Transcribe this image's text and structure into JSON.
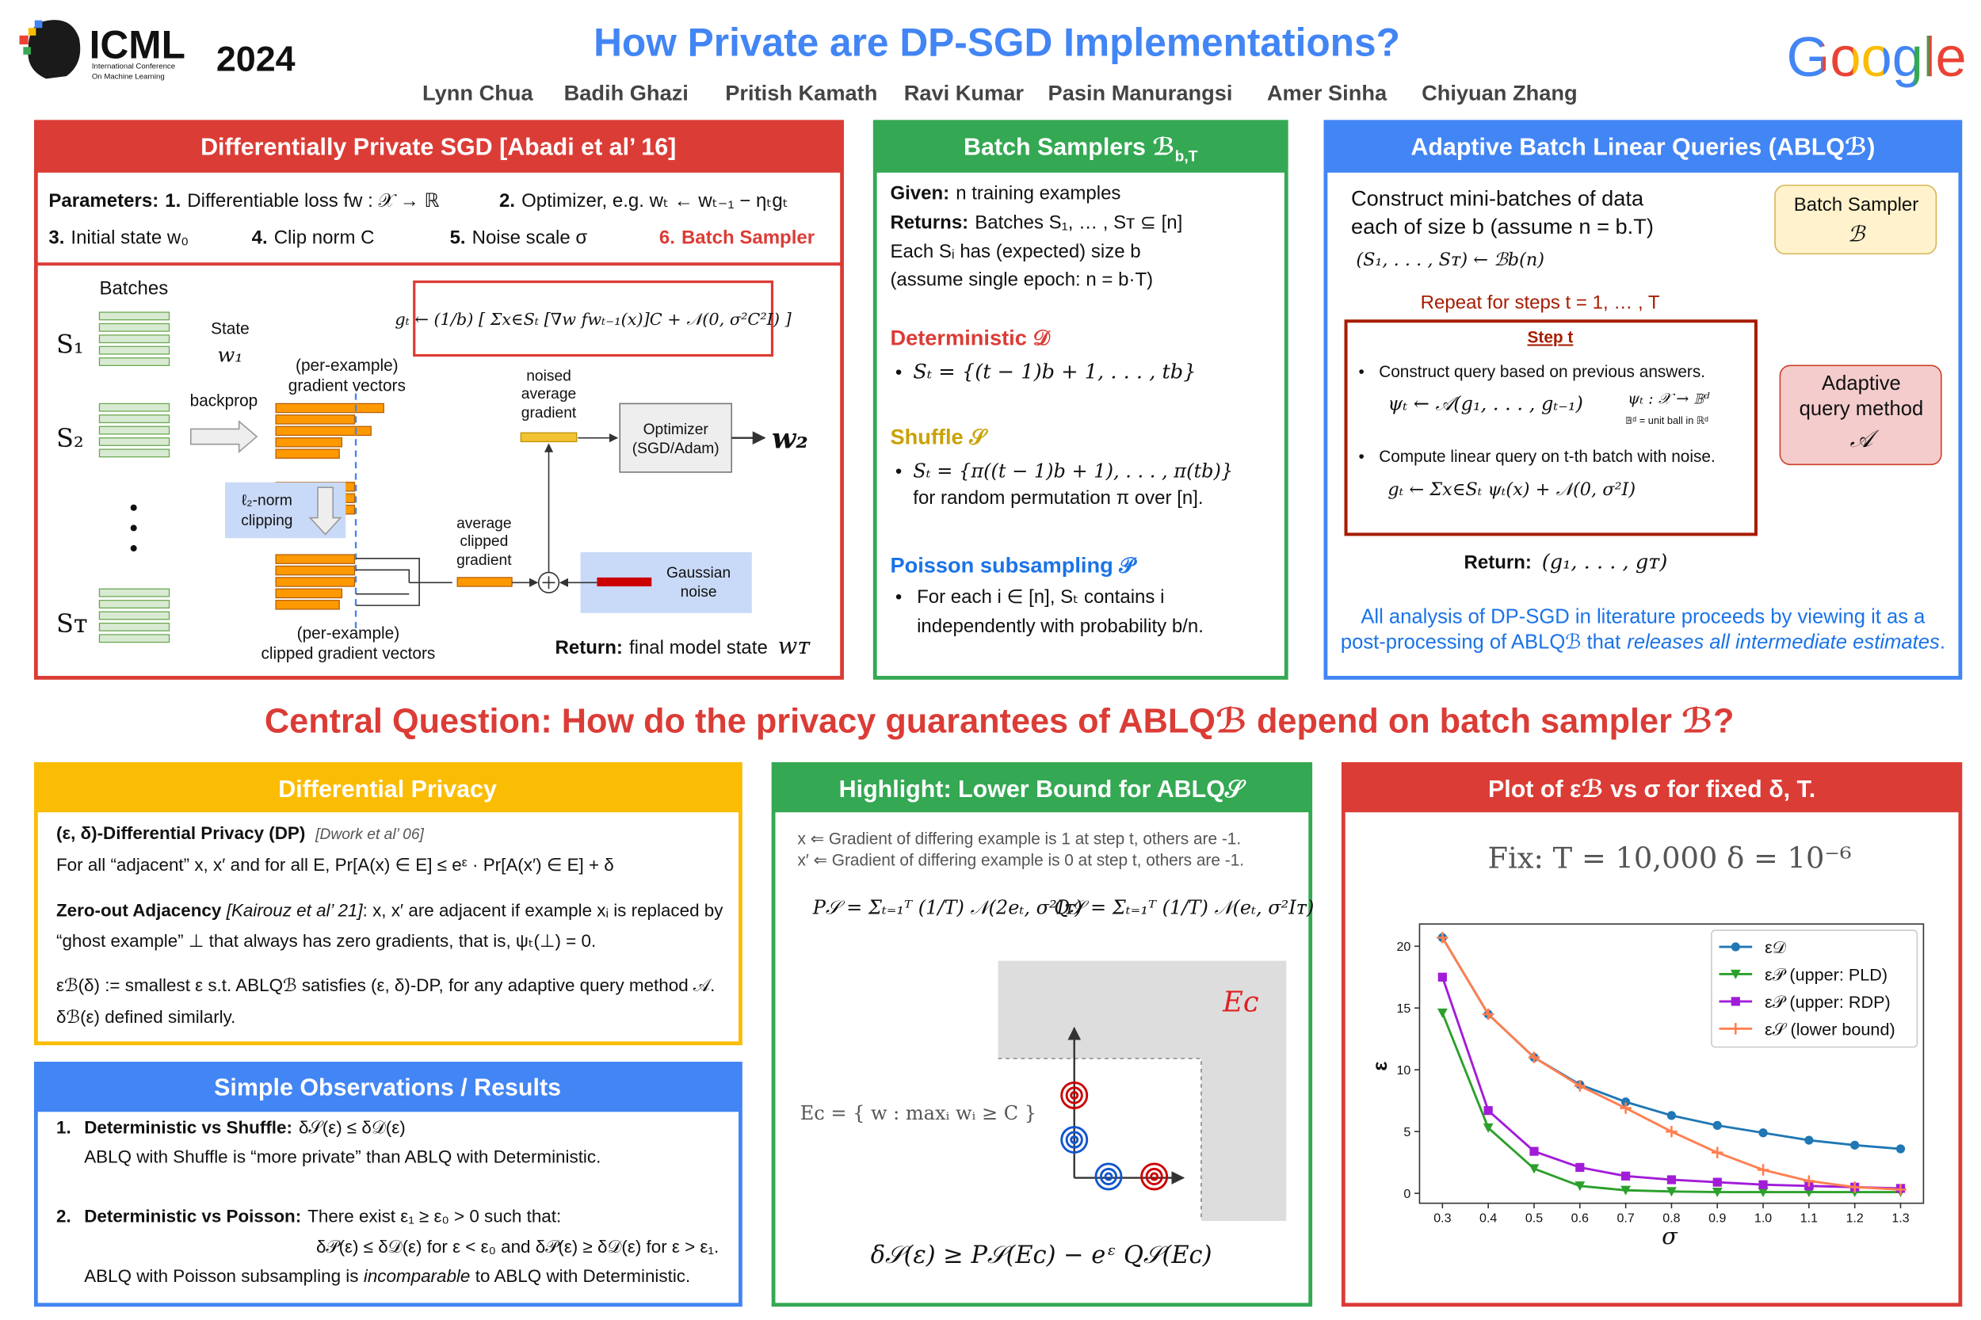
{
  "header": {
    "logo": "ICML",
    "logo_line1": "International Conference",
    "logo_line2": "On Machine Learning",
    "year": "2024",
    "title": "How Private are DP-SGD Implementations?",
    "authors": [
      "Lynn Chua",
      "Badih Ghazi",
      "Pritish Kamath",
      "Ravi Kumar",
      "Pasin Manurangsi",
      "Amer Sinha",
      "Chiyuan Zhang"
    ],
    "brand": "Google"
  },
  "dpsgd": {
    "title": "Differentially Private SGD [Abadi et al’ 16]",
    "params_label": "Parameters:",
    "params": [
      {
        "num": "1.",
        "text": "Differentiable loss fw : 𝒳 → ℝ"
      },
      {
        "num": "2.",
        "text": "Optimizer, e.g. wₜ ← wₜ₋₁ − ηₜgₜ"
      },
      {
        "num": "3.",
        "text": "Initial state w₀"
      },
      {
        "num": "4.",
        "text": "Clip norm C"
      },
      {
        "num": "5.",
        "text": "Noise scale σ"
      },
      {
        "num": "6.",
        "text": "Batch Sampler"
      }
    ],
    "formula": "gₜ ← (1/b) [ Σx∈Sₜ [∇w fwₜ₋₁(x)]C + 𝒩(0, σ²C²I) ]",
    "batches_label": "Batches",
    "sets": [
      "S₁",
      "S₂",
      "Sᴛ"
    ],
    "state_label": "State",
    "state": "w₁",
    "backprop": "backprop",
    "grad_label": [
      "(per-example)",
      "gradient vectors"
    ],
    "clip_label": [
      "ℓ₂-norm",
      "clipping"
    ],
    "noised_label": [
      "noised",
      "average",
      "gradient"
    ],
    "optimizer": [
      "Optimizer",
      "(SGD/Adam)"
    ],
    "next_state": "w₂",
    "avg_label": [
      "average",
      "clipped",
      "gradient"
    ],
    "noise_label": [
      "Gaussian",
      "noise"
    ],
    "clipped_label": [
      "(per-example)",
      "clipped gradient vectors"
    ],
    "return_label": "Return:",
    "return_text": "final model state",
    "final_state": "wᴛ"
  },
  "samplers": {
    "title": "Batch Samplers ℬ",
    "title_sub": "b,T",
    "given_label": "Given:",
    "given": "n training examples",
    "returns_label": "Returns:",
    "returns": "Batches S₁, … , Sᴛ ⊆ [n]",
    "size_note": "Each Sᵢ has (expected) size b",
    "epoch_note": "(assume single epoch: n = b·T)",
    "det_title": "Deterministic 𝒟",
    "det_def": "Sₜ = {(t − 1)b + 1, . . . , tb}",
    "shuf_title": "Shuffle 𝒮",
    "shuf_def": "Sₜ = {π((t − 1)b + 1), . . . , π(tb)}",
    "shuf_note": "for random permutation π over [n].",
    "pois_title": "Poisson subsampling 𝒫",
    "pois_def": [
      "For each i ∈ [n], Sₜ contains i",
      "independently with probability b/n."
    ]
  },
  "ablq": {
    "title": "Adaptive Batch Linear Queries (ABLQℬ)",
    "intro": [
      "Construct mini-batches of data",
      "each of size b (assume n = b.T)"
    ],
    "sampling": "(S₁, . . . , Sᴛ) ← ℬb(n)",
    "sampler_box": [
      "Batch Sampler",
      "ℬ"
    ],
    "repeat": "Repeat for steps t = 1, … , T",
    "step_title": "Step t",
    "query_step": "Construct query based on previous answers.",
    "query_formula": "ψₜ ← 𝒜(g₁, . . . , gₜ₋₁)",
    "query_range": "ψₜ : 𝒳 → 𝔹ᵈ",
    "ball_note": "𝔹ᵈ = unit ball in ℝᵈ",
    "answer_step": "Compute linear query on t-th batch with noise.",
    "answer_formula": "gₜ ← Σx∈Sₜ ψₜ(x) + 𝒩(0, σ²I)",
    "method_box": [
      "Adaptive",
      "query method",
      "𝒜"
    ],
    "return_label": "Return:",
    "return_value": "(g₁, . . . , gᴛ)",
    "note_line1": "All analysis of DP-SGD in literature proceeds by viewing it as a",
    "note_line2": [
      "post-processing of ABLQℬ that",
      "releases all intermediate estimates",
      "."
    ]
  },
  "question": "Central Question: How do the privacy guarantees of ABLQℬ depend on batch sampler ℬ?",
  "dp": {
    "title": "Differential Privacy",
    "def_title": "(ε, δ)-Differential Privacy (DP)",
    "def_cite": "[Dwork et al’ 06]",
    "def_text": "For all “adjacent” x, x′ and for all E,   Pr[A(x) ∈ E]  ≤  eᵋ · Pr[A(x′) ∈ E] + δ",
    "adj_title": "Zero-out Adjacency",
    "adj_cite": "[Kairouz et al’ 21]",
    "adj_text": [
      ": x, x′ are adjacent if example xᵢ is replaced by",
      "“ghost example” ⊥ that always has zero gradients, that is, ψₜ(⊥) = 0."
    ],
    "eps_def": "εℬ(δ) := smallest ε s.t. ABLQℬ satisfies (ε, δ)-DP, for any adaptive query method 𝒜.",
    "delta_def": "δℬ(ε) defined similarly."
  },
  "results": {
    "title": "Simple Observations / Results",
    "items": [
      {
        "num": "1.",
        "title": "Deterministic vs Shuffle:",
        "claim": "δ𝒮(ε) ≤ δ𝒟(ε)",
        "note": "ABLQ with Shuffle is “more private” than ABLQ with Deterministic."
      },
      {
        "num": "2.",
        "title": "Deterministic vs Poisson:",
        "claim": "There exist ε₁ ≥ ε₀ > 0 such that:",
        "condition": "δ𝒫(ε) ≤ δ𝒟(ε) for ε < ε₀ and δ𝒫(ε) ≥ δ𝒟(ε) for ε > ε₁.",
        "note": [
          "ABLQ with Poisson subsampling is",
          "incomparable",
          "to ABLQ with Deterministic."
        ]
      }
    ]
  },
  "highlight": {
    "title": "Highlight: Lower Bound for ABLQ𝒮",
    "x_def": "x ⇐ Gradient of differing example is 1 at step t, others are -1.",
    "x2_def": "x′ ⇐ Gradient of differing example is 0 at step t, others are -1.",
    "p_formula": "P𝒮 = Σₜ₌₁ᵀ (1/T) 𝒩(2eₜ, σ²Iᴛ)",
    "q_formula": "Q𝒮 = Σₜ₌₁ᵀ (1/T) 𝒩(eₜ, σ²Iᴛ)",
    "event_label": "Eᴄ",
    "event_def": "Eᴄ = { w : maxᵢ wᵢ ≥ C }",
    "bound": "δ𝒮(ε) ≥ P𝒮(Eᴄ) − eᵋ Q𝒮(Eᴄ)"
  },
  "chart_data": {
    "type": "line",
    "title": "Plot of εℬ vs σ for fixed δ, T.",
    "subtitle": "Fix:   T = 10,000    δ = 10⁻⁶",
    "x_label": "σ",
    "y_label": "ε",
    "x": [
      0.3,
      0.4,
      0.5,
      0.6,
      0.7,
      0.8,
      0.9,
      1.0,
      1.1,
      1.2,
      1.3
    ],
    "series": [
      {
        "name": "ε𝒟",
        "color": "#1f77b4",
        "marker": "o",
        "values": [
          20.7,
          14.5,
          11.0,
          8.8,
          7.4,
          6.3,
          5.5,
          4.9,
          4.3,
          3.9,
          3.6
        ]
      },
      {
        "name": "ε𝒫 (upper: PLD)",
        "color": "#2ca02c",
        "marker": "v",
        "values": [
          14.6,
          5.3,
          2.0,
          0.6,
          0.25,
          0.15,
          0.1,
          0.1,
          0.1,
          0.1,
          0.1
        ]
      },
      {
        "name": "ε𝒫 (upper: RDP)",
        "color": "#a21cd8",
        "marker": "s",
        "values": [
          17.5,
          6.7,
          3.4,
          2.1,
          1.4,
          1.1,
          0.9,
          0.7,
          0.6,
          0.5,
          0.4
        ]
      },
      {
        "name": "ε𝒮 (lower bound)",
        "color": "#ff7f50",
        "marker": "+",
        "values": [
          20.7,
          14.5,
          11.0,
          8.7,
          6.9,
          5.0,
          3.3,
          1.9,
          1.0,
          0.5,
          0.3
        ]
      }
    ],
    "xlim": [
      0.25,
      1.35
    ],
    "ylim": [
      -0.8,
      21.8
    ],
    "xticks": [
      0.3,
      0.4,
      0.5,
      0.6,
      0.7,
      0.8,
      0.9,
      {
        "value": 1,
        "label": "1.0"
      },
      1.1,
      1.2,
      1.3
    ],
    "yticks": [
      0,
      5,
      10,
      15,
      20
    ],
    "grid": false,
    "legend": "upper right"
  }
}
